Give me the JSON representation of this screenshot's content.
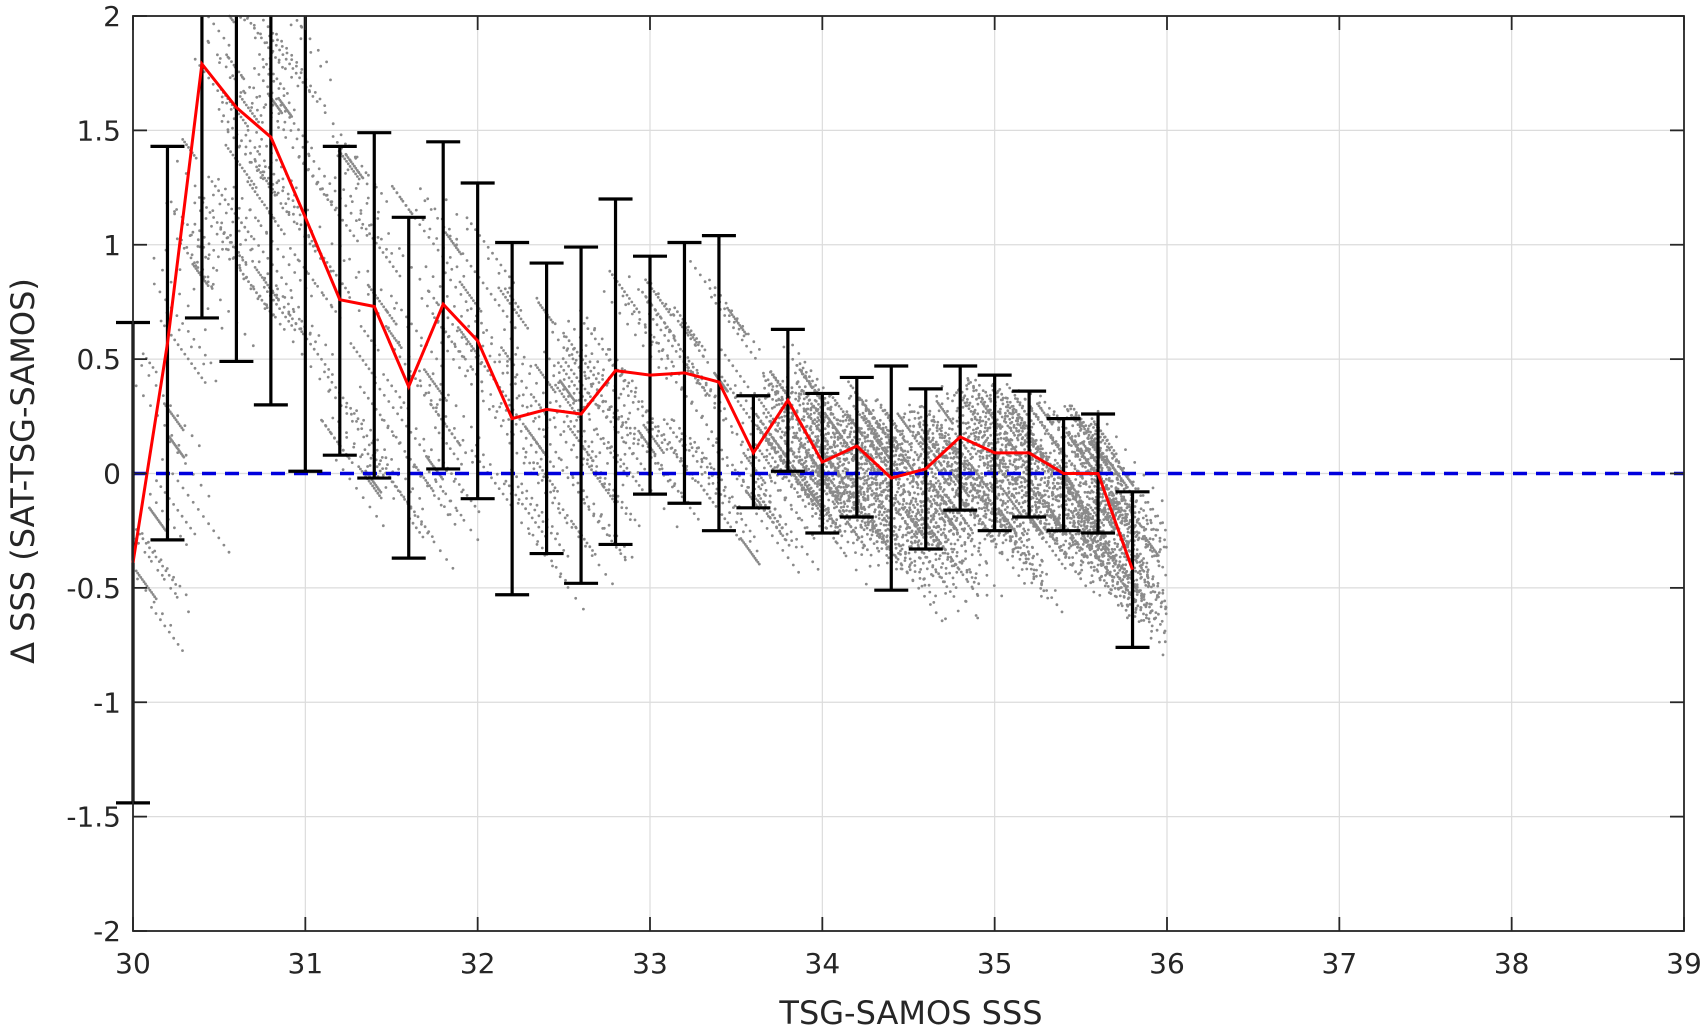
{
  "chart_data": {
    "type": "scatter",
    "xlabel": "TSG-SAMOS SSS",
    "ylabel": "Δ SSS (SAT-TSG-SAMOS)",
    "xlim": [
      30,
      39
    ],
    "ylim": [
      -2,
      2
    ],
    "grid": true,
    "x_ticks": [
      "30",
      "31",
      "32",
      "33",
      "34",
      "35",
      "36",
      "37",
      "38",
      "39"
    ],
    "y_ticks": [
      "2",
      "1.5",
      "1",
      "0.5",
      "0",
      "-0.5",
      "-1",
      "-1.5",
      "-2"
    ],
    "colors": {
      "scatter": "#8a8a8a",
      "mean_line": "#ff0000",
      "errorbar": "#000000",
      "zero_line": "#0000dd",
      "grid": "#dcdcdc",
      "axes": "#262626"
    },
    "reference_line": {
      "y": 0,
      "style": "dashed"
    },
    "binned_mean": {
      "x": [
        30.0,
        30.2,
        30.4,
        30.6,
        30.8,
        31.0,
        31.2,
        31.4,
        31.6,
        31.8,
        32.0,
        32.2,
        32.4,
        32.6,
        32.8,
        33.0,
        33.2,
        33.4,
        33.6,
        33.8,
        34.0,
        34.2,
        34.4,
        34.6,
        34.8,
        35.0,
        35.2,
        35.4,
        35.6,
        35.8
      ],
      "y": [
        -0.39,
        0.57,
        1.79,
        1.6,
        1.47,
        1.12,
        0.76,
        0.73,
        0.38,
        0.74,
        0.58,
        0.24,
        0.28,
        0.26,
        0.45,
        0.43,
        0.44,
        0.4,
        0.09,
        0.32,
        0.05,
        0.12,
        -0.02,
        0.02,
        0.16,
        0.09,
        0.09,
        0.0,
        0.0,
        -0.42
      ],
      "err_low": [
        -1.44,
        -0.29,
        0.68,
        0.49,
        0.3,
        0.01,
        0.08,
        -0.02,
        -0.37,
        0.02,
        -0.11,
        -0.53,
        -0.35,
        -0.48,
        -0.31,
        -0.09,
        -0.13,
        -0.25,
        -0.15,
        0.01,
        -0.26,
        -0.19,
        -0.51,
        -0.33,
        -0.16,
        -0.25,
        -0.19,
        -0.25,
        -0.26,
        -0.76
      ],
      "err_high": [
        0.66,
        1.43,
        2.0,
        2.0,
        2.0,
        2.0,
        1.43,
        1.49,
        1.12,
        1.45,
        1.27,
        1.01,
        0.92,
        0.99,
        1.2,
        0.95,
        1.01,
        1.04,
        0.34,
        0.63,
        0.35,
        0.42,
        0.47,
        0.37,
        0.47,
        0.43,
        0.36,
        0.24,
        0.26,
        -0.08
      ]
    }
  }
}
